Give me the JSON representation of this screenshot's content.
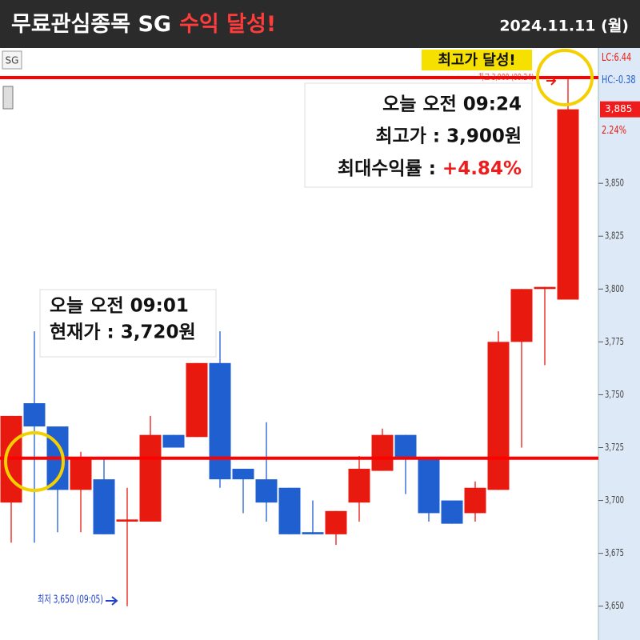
{
  "chart_data": {
    "type": "candlestick",
    "title": "무료관심종목 SG",
    "title_highlight": "수익 달성!",
    "date": "2024.11.11 (월)",
    "symbol": "SG",
    "up_color": "#e8190f",
    "down_color": "#1f5fcf",
    "ylim": [
      3634,
      3914
    ],
    "yticks": [
      {
        "value": 3650,
        "label": "3,650"
      },
      {
        "value": 3675,
        "label": "3,675"
      },
      {
        "value": 3700,
        "label": "3,700"
      },
      {
        "value": 3725,
        "label": "3,725"
      },
      {
        "value": 3750,
        "label": "3,750"
      },
      {
        "value": 3775,
        "label": "3,775"
      },
      {
        "value": 3800,
        "label": "3,800"
      },
      {
        "value": 3825,
        "label": "3,825"
      },
      {
        "value": 3850,
        "label": "3,850"
      }
    ],
    "open": [
      3699,
      3746,
      3735,
      3705,
      3710,
      3690,
      3690,
      3731,
      3730,
      3765,
      3715,
      3710,
      3706,
      3685,
      3684,
      3699,
      3714,
      3731,
      3720,
      3700,
      3694,
      3705,
      3775,
      3800,
      3795
    ],
    "high": [
      3740,
      3780,
      3735,
      3723,
      3720,
      3706,
      3740,
      3731,
      3765,
      3780,
      3715,
      3737,
      3706,
      3700,
      3695,
      3721,
      3734,
      3731,
      3720,
      3700,
      3709,
      3780,
      3800,
      3801,
      3900
    ],
    "low": [
      3680,
      3680,
      3685,
      3685,
      3684,
      3650,
      3690,
      3725,
      3730,
      3706,
      3694,
      3690,
      3684,
      3684,
      3679,
      3690,
      3714,
      3703,
      3690,
      3689,
      3690,
      3705,
      3725,
      3764,
      3795
    ],
    "close": [
      3740,
      3735,
      3705,
      3720,
      3684,
      3691,
      3731,
      3725,
      3765,
      3710,
      3710,
      3699,
      3684,
      3684,
      3695,
      3715,
      3731,
      3720,
      3694,
      3689,
      3706,
      3775,
      3800,
      3801,
      3885
    ],
    "reference_lines": [
      3900,
      3720
    ],
    "reference_color": "#ff0000",
    "price_marker": {
      "value": 3885,
      "label": "3,885"
    },
    "side_labels": [
      "LC:6.44",
      "HC:-0.38",
      "2.24%"
    ],
    "low_note": "최저 3,650 (09:05)",
    "high_note": "최고 3,900 (09:24)",
    "badge": "최고가 달성!",
    "callout_high": [
      "오늘 오전 09:24",
      "최고가 : 3,900원",
      "최대수익률 : ",
      "+4.84%"
    ],
    "callout_now": [
      "오늘 오전 09:01",
      "현재가 : 3,720원"
    ]
  }
}
